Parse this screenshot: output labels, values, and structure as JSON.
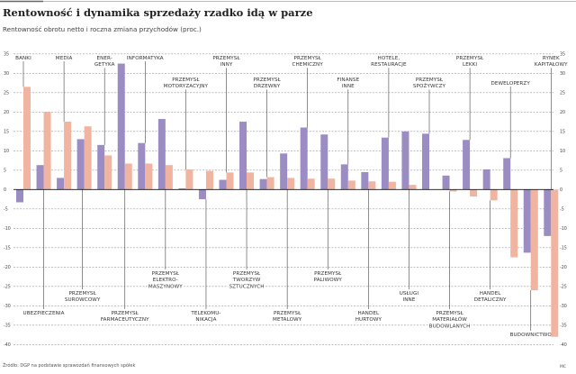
{
  "title": "Rentowność i dynamika sprzedaży rzadko idą w parze",
  "subtitle": "Rentowność obrotu netto i roczna zmiana przychodów (proc.)",
  "source": "Źródło: DGP na podstawie sprawozdań finansowych spółek",
  "author_mark": "MC",
  "chart_data": {
    "type": "bar",
    "title": "Rentowność i dynamika sprzedaży rzadko idą w parze",
    "subtitle": "Rentowność obrotu netto i roczna zmiana przychodów (proc.)",
    "ylim": [
      -40,
      35
    ],
    "yticks": [
      35,
      30,
      25,
      20,
      15,
      10,
      5,
      0,
      -5,
      -10,
      -15,
      -20,
      -25,
      -30,
      -35,
      -40
    ],
    "grid": true,
    "colors": {
      "rentownosc": "#9b8dc4",
      "zmiana_przychodow": "#f0b4a0"
    },
    "categories": [
      [
        "BANKI"
      ],
      [
        "UBEZPIECZENIA"
      ],
      [
        "MEDIA"
      ],
      [
        "PRZEMYSŁ",
        "SUROWCOWY"
      ],
      [
        "ENER-",
        "GETYKA"
      ],
      [
        "PRZEMYSŁ",
        "FARMACEUTYCZNY"
      ],
      [
        "INFORMATYKA"
      ],
      [
        "PRZEMYSŁ",
        "ELEKTRO-",
        "MASZYNOWY"
      ],
      [
        "PRZEMYSŁ",
        "MOTORYZACYJNY"
      ],
      [
        "TELEKOMU-",
        "NIKACJA"
      ],
      [
        "PRZEMYSŁ",
        "INNY"
      ],
      [
        "PRZEMYSŁ",
        "TWORZYW",
        "SZTUCZNYCH"
      ],
      [
        "PRZEMYSŁ",
        "DRZEWNY"
      ],
      [
        "PRZEMYSŁ",
        "METALOWY"
      ],
      [
        "PRZEMYSŁ",
        "CHEMICZNY"
      ],
      [
        "PRZEMYSŁ",
        "PALIWOWY"
      ],
      [
        "FINANSE",
        "INNE"
      ],
      [
        "HANDEL",
        "HURTOWY"
      ],
      [
        "HOTELE,",
        "RESTAURACJE"
      ],
      [
        "USŁUGI",
        "INNE"
      ],
      [
        "PRZEMYSŁ",
        "SPOŻYWCZY"
      ],
      [
        "PRZEMYSŁ",
        "MATERIAŁÓW",
        "BUDOWLANYCH"
      ],
      [
        "PRZEMYSŁ",
        "LEKKI"
      ],
      [
        "HANDEL",
        "DETALICZNY"
      ],
      [
        "DEWELOPERZY"
      ],
      [
        "BUDOWNICTWO"
      ],
      [
        "RYNEK",
        "KAPITAŁOWY"
      ]
    ],
    "series": [
      {
        "values": [
          -3.3,
          6.3,
          3.0,
          13.0,
          11.5,
          32.5,
          12.0,
          18.2,
          0.3,
          -2.5,
          2.5,
          17.5,
          2.7,
          9.3,
          16.0,
          14.2,
          6.5,
          4.5,
          13.4,
          15.0,
          14.4,
          3.6,
          12.8,
          5.2,
          8.1,
          -16.3,
          -12.0
        ]
      },
      {
        "values": [
          26.5,
          20.0,
          17.5,
          16.3,
          8.8,
          6.7,
          6.7,
          6.3,
          5.2,
          4.8,
          4.4,
          4.4,
          3.2,
          3.0,
          2.8,
          2.8,
          2.3,
          2.1,
          2.0,
          1.2,
          0.0,
          -0.5,
          -1.8,
          -2.8,
          -17.5,
          -26.0,
          -38.0
        ]
      }
    ]
  }
}
